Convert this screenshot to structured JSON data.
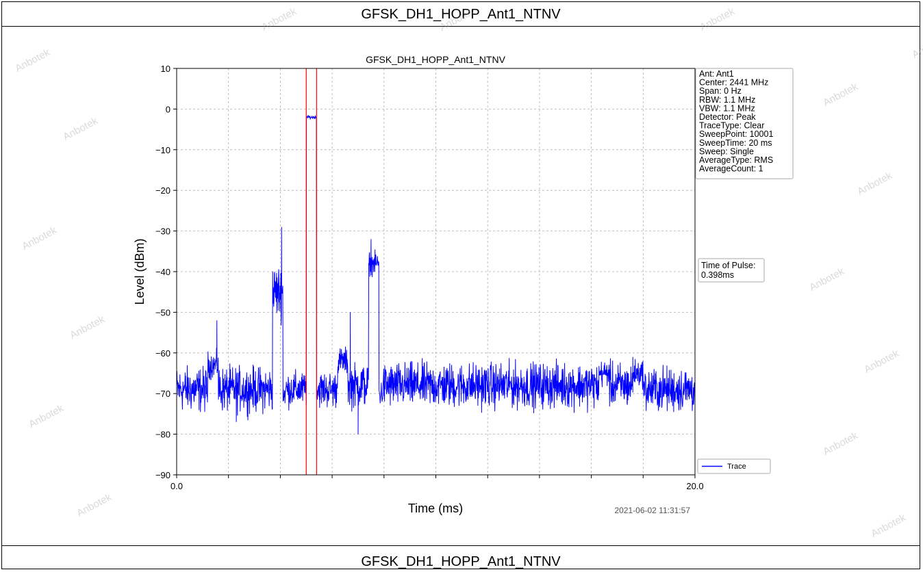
{
  "page": {
    "header_title": "GFSK_DH1_HOPP_Ant1_NTNV",
    "footer_title": "GFSK_DH1_HOPP_Ant1_NTNV",
    "watermark": "Anbotek"
  },
  "chart_data": {
    "type": "line",
    "title": "GFSK_DH1_HOPP_Ant1_NTNV",
    "xlabel": "Time (ms)",
    "ylabel": "Level (dBm)",
    "xlim": [
      0.0,
      20.0
    ],
    "ylim": [
      -90,
      10
    ],
    "x_ticks": [
      0.0,
      20.0
    ],
    "x_tick_labels": [
      "0.0",
      "20.0"
    ],
    "y_ticks": [
      10,
      0,
      -10,
      -20,
      -30,
      -40,
      -50,
      -60,
      -70,
      -80,
      -90
    ],
    "y_tick_labels": [
      "10",
      "0",
      "−10",
      "−20",
      "−30",
      "−40",
      "−50",
      "−60",
      "−70",
      "−80",
      "−90"
    ],
    "grid": true,
    "timestamp": "2021-06-02 11:31:57",
    "legend": {
      "placement": "bottom-right",
      "entries": [
        "Trace"
      ]
    },
    "info_box": {
      "placement": "top-right",
      "lines": [
        "Ant: Ant1",
        "Center: 2441 MHz",
        "Span: 0 Hz",
        "RBW: 1.1 MHz",
        "VBW: 1.1 MHz",
        "Detector: Peak",
        "TraceType: Clear",
        "SweepPoint: 10001",
        "SweepTime: 20 ms",
        "Sweep: Single",
        "AverageType: RMS",
        "AverageCount: 1"
      ]
    },
    "pulse_box": {
      "lines": [
        "Time of Pulse:",
        " 0.398ms"
      ]
    },
    "markers": {
      "color": "#ff0000",
      "x": [
        5.0,
        5.398
      ]
    },
    "series": [
      {
        "name": "Trace",
        "color": "#0000ff",
        "segments": [
          {
            "x_start": 0.0,
            "x_end": 1.2,
            "level": -69,
            "jitter": 5
          },
          {
            "x_start": 1.2,
            "x_end": 1.6,
            "level": -63,
            "jitter": 3
          },
          {
            "x_start": 1.6,
            "x_end": 3.7,
            "level": -69,
            "jitter": 5
          },
          {
            "x_start": 3.7,
            "x_end": 4.1,
            "level": -45,
            "jitter": 6
          },
          {
            "x_start": 4.1,
            "x_end": 4.2,
            "level": -70,
            "jitter": 3
          },
          {
            "x_start": 4.2,
            "x_end": 5.0,
            "level": -69,
            "jitter": 4
          },
          {
            "x_start": 5.0,
            "x_end": 5.398,
            "level": -2,
            "jitter": 0.4
          },
          {
            "x_start": 5.398,
            "x_end": 6.2,
            "level": -69,
            "jitter": 4
          },
          {
            "x_start": 6.2,
            "x_end": 6.6,
            "level": -62,
            "jitter": 3
          },
          {
            "x_start": 6.6,
            "x_end": 7.4,
            "level": -68,
            "jitter": 5
          },
          {
            "x_start": 7.4,
            "x_end": 7.8,
            "level": -38,
            "jitter": 2.5
          },
          {
            "x_start": 7.8,
            "x_end": 7.95,
            "level": -70,
            "jitter": 3
          },
          {
            "x_start": 7.95,
            "x_end": 16.3,
            "level": -68,
            "jitter": 5
          },
          {
            "x_start": 16.3,
            "x_end": 16.7,
            "level": -65,
            "jitter": 3
          },
          {
            "x_start": 16.7,
            "x_end": 17.6,
            "level": -68,
            "jitter": 5
          },
          {
            "x_start": 17.6,
            "x_end": 18.0,
            "level": -65,
            "jitter": 3
          },
          {
            "x_start": 18.0,
            "x_end": 20.0,
            "level": -69,
            "jitter": 5
          }
        ],
        "spikes": [
          {
            "x": 1.55,
            "y": -52
          },
          {
            "x": 4.05,
            "y": -29
          },
          {
            "x": 6.7,
            "y": -50
          },
          {
            "x": 7.5,
            "y": -32
          },
          {
            "x": 7.0,
            "y": -80
          },
          {
            "x": 2.3,
            "y": -77
          },
          {
            "x": 17.6,
            "y": -61
          }
        ]
      }
    ]
  }
}
